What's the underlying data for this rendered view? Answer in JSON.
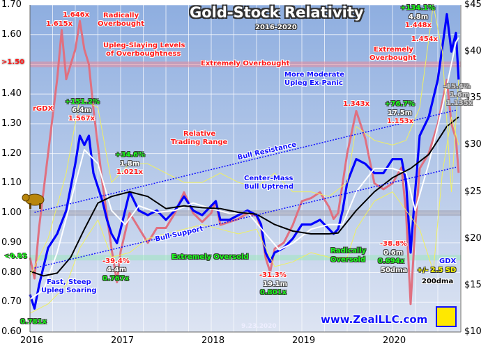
{
  "chart_data": {
    "type": "line",
    "title": "Gold-Stock Relativity",
    "subtitle": "2016-2020",
    "date_stamp": "9.23.2020",
    "watermark": "www.ZealLLC.com",
    "x_ticks": [
      "2016",
      "2017",
      "2018",
      "2019",
      "2020"
    ],
    "xlim": [
      2016,
      2020.75
    ],
    "left_axis": {
      "label": "rGDX",
      "ylim": [
        0.6,
        1.7
      ],
      "ticks": [
        "1.70",
        "1.60",
        "1.50",
        "1.40",
        "1.30",
        "1.20",
        "1.10",
        "1.00",
        "0.90",
        "0.80",
        "0.70",
        "0.60"
      ],
      "tick_values": [
        1.7,
        1.6,
        1.5,
        1.4,
        1.3,
        1.2,
        1.1,
        1.0,
        0.9,
        0.8,
        0.7,
        0.6
      ]
    },
    "right_axis": {
      "label": "GDX",
      "ylim": [
        10,
        45
      ],
      "ticks": [
        "$45",
        "$40",
        "$35",
        "$30",
        "$25",
        "$20",
        "$15",
        "$10"
      ],
      "tick_values": [
        45,
        40,
        35,
        30,
        25,
        20,
        15,
        10
      ]
    },
    "bands": [
      {
        "name": "overbought",
        "value": 1.5,
        "label": ">1.50",
        "color": "#e88a9a"
      },
      {
        "name": "neutral",
        "value": 1.0,
        "color": "#a0a0b0"
      },
      {
        "name": "oversold",
        "value": 0.85,
        "label": "<0.85",
        "color": "#9ee6c0"
      }
    ],
    "series": [
      {
        "name": "rGDX",
        "axis": "left",
        "color": "#e07080",
        "x": [
          2016.0,
          2016.05,
          2016.1,
          2016.2,
          2016.3,
          2016.35,
          2016.4,
          2016.5,
          2016.55,
          2016.6,
          2016.65,
          2016.7,
          2016.8,
          2016.9,
          2016.96,
          2017.0,
          2017.1,
          2017.2,
          2017.3,
          2017.4,
          2017.5,
          2017.6,
          2017.7,
          2017.8,
          2017.9,
          2018.0,
          2018.05,
          2018.1,
          2018.2,
          2018.3,
          2018.4,
          2018.5,
          2018.55,
          2018.6,
          2018.65,
          2018.7,
          2018.8,
          2018.9,
          2019.0,
          2019.1,
          2019.2,
          2019.3,
          2019.35,
          2019.4,
          2019.45,
          2019.5,
          2019.6,
          2019.7,
          2019.8,
          2019.9,
          2020.0,
          2020.1,
          2020.15,
          2020.2,
          2020.25,
          2020.3,
          2020.4,
          2020.5,
          2020.6,
          2020.65,
          2020.7,
          2020.73
        ],
        "values": [
          0.85,
          0.78,
          0.95,
          1.2,
          1.45,
          1.615,
          1.45,
          1.55,
          1.646,
          1.55,
          1.5,
          1.35,
          1.1,
          0.88,
          0.767,
          0.87,
          1.0,
          0.95,
          0.9,
          0.95,
          0.95,
          1.0,
          1.07,
          1.0,
          0.97,
          1.0,
          1.04,
          0.96,
          0.97,
          0.98,
          1.0,
          0.99,
          0.95,
          0.85,
          0.801,
          0.88,
          0.9,
          0.96,
          1.04,
          1.05,
          1.07,
          1.02,
          0.98,
          1.0,
          1.1,
          1.2,
          1.343,
          1.25,
          1.1,
          1.08,
          1.1,
          1.153,
          1.0,
          0.694,
          0.95,
          1.15,
          1.2,
          1.3,
          1.448,
          1.3,
          1.25,
          1.135
        ]
      },
      {
        "name": "GDX",
        "axis": "right",
        "color": "#0000ff",
        "x": [
          2016.0,
          2016.05,
          2016.1,
          2016.2,
          2016.3,
          2016.4,
          2016.5,
          2016.55,
          2016.6,
          2016.65,
          2016.7,
          2016.8,
          2016.85,
          2016.9,
          2016.96,
          2017.0,
          2017.1,
          2017.2,
          2017.3,
          2017.4,
          2017.5,
          2017.6,
          2017.7,
          2017.8,
          2017.9,
          2018.0,
          2018.05,
          2018.1,
          2018.2,
          2018.3,
          2018.4,
          2018.5,
          2018.55,
          2018.6,
          2018.65,
          2018.7,
          2018.8,
          2018.9,
          2019.0,
          2019.1,
          2019.2,
          2019.3,
          2019.35,
          2019.4,
          2019.45,
          2019.5,
          2019.6,
          2019.7,
          2019.8,
          2019.9,
          2020.0,
          2020.1,
          2020.15,
          2020.2,
          2020.25,
          2020.3,
          2020.4,
          2020.5,
          2020.6,
          2020.65,
          2020.7,
          2020.73
        ],
        "values": [
          14.0,
          12.5,
          15,
          19,
          20.5,
          23,
          28,
          31,
          30,
          31,
          27,
          24,
          22,
          20.5,
          19.5,
          21,
          25,
          23,
          22.5,
          23,
          22,
          23,
          24.5,
          23,
          22.5,
          23.5,
          24,
          22,
          22,
          22.5,
          23,
          22.5,
          21.5,
          18.5,
          17.5,
          18.5,
          19,
          20,
          21.5,
          21.5,
          22,
          21,
          20.5,
          21,
          23,
          26,
          28.5,
          28,
          27,
          27,
          28.5,
          28.5,
          26,
          18.5,
          25,
          31,
          33,
          37,
          44,
          40,
          42,
          37
        ]
      },
      {
        "name": "50dma",
        "axis": "right",
        "color": "#ffffff",
        "x": [
          2016.0,
          2016.15,
          2016.3,
          2016.45,
          2016.6,
          2016.75,
          2016.9,
          2017.05,
          2017.2,
          2017.4,
          2017.6,
          2017.8,
          2018.0,
          2018.2,
          2018.4,
          2018.6,
          2018.75,
          2018.9,
          2019.1,
          2019.3,
          2019.45,
          2019.6,
          2019.8,
          2020.0,
          2020.15,
          2020.25,
          2020.4,
          2020.55,
          2020.7,
          2020.73
        ],
        "values": [
          13.5,
          14.5,
          18.5,
          24,
          29.5,
          28,
          23,
          21.5,
          23.5,
          22.8,
          23,
          23.8,
          23.2,
          22.7,
          22.8,
          20.5,
          18.8,
          19.5,
          21,
          21.5,
          21.5,
          25,
          27.5,
          27.5,
          27,
          23,
          28,
          34,
          41,
          41.5
        ]
      },
      {
        "name": "200dma",
        "axis": "right",
        "color": "#000000",
        "x": [
          2016.0,
          2016.15,
          2016.3,
          2016.45,
          2016.6,
          2016.75,
          2016.9,
          2017.1,
          2017.3,
          2017.5,
          2017.7,
          2017.9,
          2018.1,
          2018.3,
          2018.5,
          2018.7,
          2018.9,
          2019.1,
          2019.3,
          2019.4,
          2019.6,
          2019.8,
          2020.0,
          2020.2,
          2020.4,
          2020.6,
          2020.73
        ],
        "values": [
          16.5,
          16,
          16.3,
          18,
          21,
          23.8,
          24.5,
          25,
          24.5,
          23.2,
          23.5,
          23.3,
          23.2,
          22.8,
          22.6,
          21.5,
          20.8,
          20.5,
          20.5,
          20.6,
          23,
          25,
          26.5,
          27.5,
          29,
          32,
          33
        ]
      },
      {
        "name": "+2.5 SD",
        "axis": "right",
        "color": "#f0f060",
        "x": [
          2016.0,
          2016.2,
          2016.4,
          2016.55,
          2016.75,
          2016.9,
          2017.1,
          2017.3,
          2017.5,
          2017.7,
          2017.9,
          2018.1,
          2018.3,
          2018.5,
          2018.7,
          2018.9,
          2019.1,
          2019.3,
          2019.5,
          2019.6,
          2019.8,
          2020.0,
          2020.15,
          2020.3,
          2020.45,
          2020.55,
          2020.65,
          2020.73
        ],
        "values": [
          16,
          20,
          27,
          35,
          34,
          26,
          28,
          28,
          27,
          26,
          26,
          27,
          26,
          25.5,
          27,
          25,
          25,
          24.5,
          26,
          32,
          30.5,
          30,
          30.5,
          34,
          45,
          40,
          25,
          37
        ]
      },
      {
        "name": "-2.5 SD",
        "axis": "right",
        "color": "#f0f060",
        "x": [
          2016.0,
          2016.2,
          2016.4,
          2016.55,
          2016.75,
          2016.9,
          2017.1,
          2017.3,
          2017.5,
          2017.7,
          2017.9,
          2018.1,
          2018.3,
          2018.5,
          2018.7,
          2018.9,
          2019.1,
          2019.3,
          2019.5,
          2019.6,
          2019.8,
          2020.0,
          2020.15,
          2020.3,
          2020.45,
          2020.55,
          2020.65,
          2020.73
        ],
        "values": [
          12,
          13,
          15,
          19,
          22,
          18,
          18.5,
          20,
          20.5,
          21,
          21.5,
          21,
          20.5,
          21,
          17,
          17.5,
          18.5,
          18,
          18,
          21,
          24,
          25,
          23,
          21,
          16.5,
          27,
          33,
          30
        ]
      },
      {
        "name": "Bull Resistance",
        "axis": "left",
        "color": "#1010ff",
        "dashed": true,
        "x": [
          2016.05,
          2020.7
        ],
        "values": [
          1.002,
          1.346
        ]
      },
      {
        "name": "Bull Support",
        "axis": "left",
        "color": "#1010ff",
        "dashed": true,
        "x": [
          2016.05,
          2020.7
        ],
        "values": [
          0.815,
          1.154
        ]
      }
    ],
    "annotations": {
      "a1646": "1.646x",
      "radically_overbought": [
        "Radically",
        "Overbought"
      ],
      "a1615": "1.615x",
      "upleg_slaying": [
        "Upleg-Slaying Levels",
        "of Overboughtness"
      ],
      "extremely_overbought": "Extremely Overbought",
      "rgdx": "rGDX",
      "up1": [
        "+151.2%",
        "6.4m",
        "1.567x"
      ],
      "up2": [
        "+34.6%",
        "1.8m",
        "1.021x"
      ],
      "relative_range": [
        "Relative",
        "Trading Range"
      ],
      "bull_resistance": "Bull Resistance",
      "center_mass": [
        "Center-Mass",
        "Bull Uptrend"
      ],
      "bull_support": "Bull Support",
      "extremely_oversold": "Extremely Oversold",
      "dn1": [
        "-39.4%",
        "4.4m",
        "0.767x"
      ],
      "fast_steep": [
        "Fast, Steep",
        "Upleg Soaring"
      ],
      "a0781": "0.781x",
      "dn2": [
        "-31.3%",
        "19.1m",
        "0.801x"
      ],
      "radically_oversold": [
        "Radically",
        "Oversold"
      ],
      "dn3": [
        "-38.8%",
        "0.6m",
        "0.694x"
      ],
      "legend_50dma": "50dma",
      "legend_sd": "+/- 2.5 SD",
      "legend_gdx": "GDX",
      "legend_200dma": "200dma",
      "more_moderate": [
        "More Moderate",
        "Upleg Ex-Panic"
      ],
      "a1343": "1.343x",
      "up3": [
        "+76.7%",
        "17.5m",
        "1.153x"
      ],
      "up4": [
        "+134.1%",
        "4.8m",
        "1.448x"
      ],
      "a1454": "1.454x",
      "extremely_overbought2": [
        "Extremely",
        "Overbought"
      ],
      "cur": [
        "-15.4%",
        "1.6m",
        "1.135x"
      ]
    }
  }
}
